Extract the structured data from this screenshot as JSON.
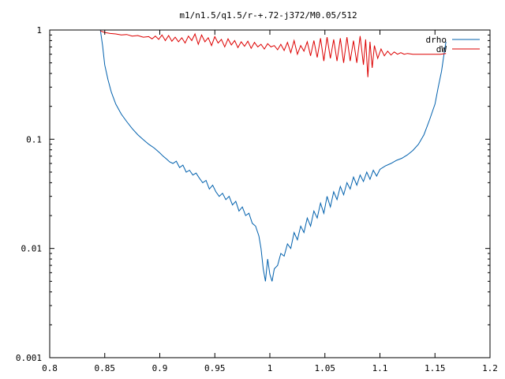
{
  "chart_data": {
    "type": "line",
    "title": "m1/n1.5/q1.5/r-+.72-j372/M0.05/512",
    "xlabel": "",
    "ylabel": "",
    "xlim": [
      0.8,
      1.2
    ],
    "ylim": [
      0.001,
      1
    ],
    "yscale": "log",
    "grid": false,
    "legend": "top-right",
    "x_ticks": [
      {
        "value": 0.8,
        "label": "0.8"
      },
      {
        "value": 0.85,
        "label": "0.85"
      },
      {
        "value": 0.9,
        "label": "0.9"
      },
      {
        "value": 0.95,
        "label": "0.95"
      },
      {
        "value": 1.0,
        "label": "1"
      },
      {
        "value": 1.05,
        "label": "1.05"
      },
      {
        "value": 1.1,
        "label": "1.1"
      },
      {
        "value": 1.15,
        "label": "1.15"
      },
      {
        "value": 1.2,
        "label": "1.2"
      }
    ],
    "y_ticks": [
      {
        "value": 1,
        "label": "1"
      },
      {
        "value": 0.1,
        "label": "0.1"
      },
      {
        "value": 0.01,
        "label": "0.01"
      },
      {
        "value": 0.001,
        "label": "0.001"
      }
    ],
    "series": [
      {
        "name": "drho",
        "color": "#0060ad",
        "x": [
          0.846,
          0.848,
          0.85,
          0.853,
          0.856,
          0.86,
          0.865,
          0.87,
          0.875,
          0.88,
          0.885,
          0.89,
          0.895,
          0.9,
          0.903,
          0.906,
          0.909,
          0.912,
          0.915,
          0.918,
          0.921,
          0.924,
          0.927,
          0.93,
          0.933,
          0.936,
          0.939,
          0.942,
          0.945,
          0.948,
          0.951,
          0.954,
          0.957,
          0.96,
          0.963,
          0.966,
          0.969,
          0.972,
          0.975,
          0.978,
          0.981,
          0.984,
          0.987,
          0.99,
          0.992,
          0.994,
          0.996,
          0.998,
          1.0,
          1.002,
          1.004,
          1.007,
          1.01,
          1.013,
          1.016,
          1.019,
          1.022,
          1.025,
          1.028,
          1.031,
          1.034,
          1.037,
          1.04,
          1.043,
          1.046,
          1.049,
          1.052,
          1.055,
          1.058,
          1.061,
          1.064,
          1.067,
          1.07,
          1.073,
          1.076,
          1.079,
          1.082,
          1.085,
          1.088,
          1.091,
          1.094,
          1.097,
          1.1,
          1.105,
          1.11,
          1.115,
          1.12,
          1.125,
          1.13,
          1.135,
          1.14,
          1.145,
          1.15,
          1.153,
          1.156,
          1.158,
          1.16
        ],
        "values": [
          1.0,
          0.72,
          0.48,
          0.35,
          0.27,
          0.21,
          0.17,
          0.145,
          0.125,
          0.11,
          0.099,
          0.09,
          0.083,
          0.075,
          0.07,
          0.066,
          0.062,
          0.06,
          0.063,
          0.055,
          0.058,
          0.05,
          0.052,
          0.047,
          0.049,
          0.044,
          0.04,
          0.042,
          0.035,
          0.038,
          0.033,
          0.03,
          0.032,
          0.028,
          0.03,
          0.025,
          0.027,
          0.022,
          0.024,
          0.02,
          0.021,
          0.017,
          0.016,
          0.013,
          0.01,
          0.0065,
          0.005,
          0.008,
          0.0058,
          0.005,
          0.0065,
          0.007,
          0.009,
          0.0085,
          0.011,
          0.01,
          0.014,
          0.012,
          0.016,
          0.014,
          0.019,
          0.016,
          0.022,
          0.019,
          0.026,
          0.021,
          0.03,
          0.024,
          0.033,
          0.028,
          0.037,
          0.031,
          0.04,
          0.035,
          0.045,
          0.038,
          0.047,
          0.041,
          0.05,
          0.043,
          0.052,
          0.046,
          0.053,
          0.057,
          0.06,
          0.064,
          0.067,
          0.072,
          0.079,
          0.09,
          0.11,
          0.15,
          0.21,
          0.3,
          0.42,
          0.58,
          0.78
        ]
      },
      {
        "name": "dW",
        "color": "#dd0000",
        "x": [
          0.846,
          0.85,
          0.855,
          0.86,
          0.865,
          0.87,
          0.875,
          0.88,
          0.885,
          0.89,
          0.893,
          0.896,
          0.899,
          0.902,
          0.905,
          0.908,
          0.911,
          0.914,
          0.917,
          0.92,
          0.923,
          0.926,
          0.929,
          0.932,
          0.935,
          0.938,
          0.941,
          0.944,
          0.947,
          0.95,
          0.953,
          0.956,
          0.959,
          0.962,
          0.965,
          0.968,
          0.971,
          0.974,
          0.977,
          0.98,
          0.983,
          0.986,
          0.989,
          0.992,
          0.995,
          0.998,
          1.001,
          1.004,
          1.007,
          1.01,
          1.013,
          1.016,
          1.019,
          1.022,
          1.025,
          1.028,
          1.031,
          1.034,
          1.037,
          1.04,
          1.043,
          1.046,
          1.049,
          1.052,
          1.055,
          1.058,
          1.061,
          1.064,
          1.067,
          1.07,
          1.073,
          1.076,
          1.079,
          1.082,
          1.085,
          1.087,
          1.089,
          1.091,
          1.093,
          1.095,
          1.098,
          1.101,
          1.104,
          1.107,
          1.11,
          1.113,
          1.116,
          1.119,
          1.122,
          1.125,
          1.13,
          1.135,
          1.14,
          1.145,
          1.15,
          1.155,
          1.16
        ],
        "values": [
          0.98,
          0.95,
          0.93,
          0.92,
          0.9,
          0.91,
          0.88,
          0.89,
          0.86,
          0.87,
          0.83,
          0.88,
          0.82,
          0.9,
          0.8,
          0.89,
          0.79,
          0.86,
          0.78,
          0.85,
          0.76,
          0.88,
          0.8,
          0.92,
          0.74,
          0.9,
          0.78,
          0.85,
          0.72,
          0.87,
          0.76,
          0.82,
          0.7,
          0.83,
          0.73,
          0.8,
          0.69,
          0.78,
          0.71,
          0.79,
          0.68,
          0.77,
          0.7,
          0.74,
          0.67,
          0.75,
          0.7,
          0.72,
          0.66,
          0.74,
          0.65,
          0.77,
          0.62,
          0.8,
          0.6,
          0.72,
          0.64,
          0.78,
          0.58,
          0.8,
          0.56,
          0.84,
          0.52,
          0.86,
          0.55,
          0.82,
          0.52,
          0.84,
          0.5,
          0.86,
          0.52,
          0.8,
          0.5,
          0.88,
          0.48,
          0.82,
          0.37,
          0.78,
          0.45,
          0.72,
          0.55,
          0.67,
          0.58,
          0.64,
          0.59,
          0.63,
          0.6,
          0.62,
          0.6,
          0.61,
          0.6,
          0.6,
          0.6,
          0.6,
          0.6,
          0.6,
          0.61
        ]
      }
    ]
  }
}
